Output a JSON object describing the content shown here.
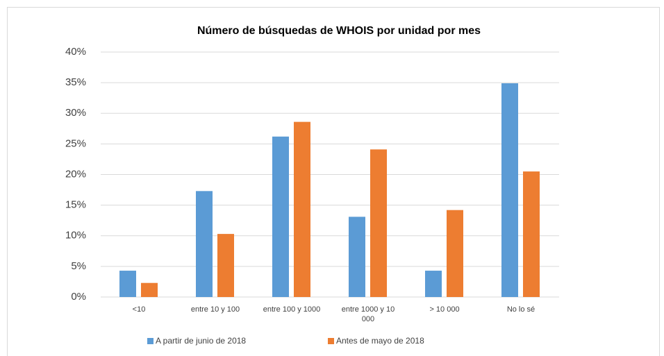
{
  "chart_data": {
    "type": "bar",
    "title": "Número de búsquedas de WHOIS por unidad por mes",
    "categories": [
      "<10",
      "entre 10 y 100",
      "entre 100 y 1000",
      "entre 1000 y 10 000",
      "> 10 000",
      "No lo sé"
    ],
    "series": [
      {
        "name": "A partir de junio de 2018",
        "color": "#5b9bd5",
        "values": [
          4.3,
          17.3,
          26.2,
          13.1,
          4.3,
          34.9
        ]
      },
      {
        "name": "Antes de mayo de 2018",
        "color": "#ed7d31",
        "values": [
          2.3,
          10.3,
          28.6,
          24.1,
          14.2,
          20.5
        ]
      }
    ],
    "ylim": [
      0,
      40
    ],
    "yticks": [
      {
        "value": 0,
        "label": "0%"
      },
      {
        "value": 5,
        "label": "5%"
      },
      {
        "value": 10,
        "label": "10%"
      },
      {
        "value": 15,
        "label": "15%"
      },
      {
        "value": 20,
        "label": "20%"
      },
      {
        "value": 25,
        "label": "25%"
      },
      {
        "value": 30,
        "label": "30%"
      },
      {
        "value": 35,
        "label": "35%"
      },
      {
        "value": 40,
        "label": "40%"
      }
    ],
    "grid": true,
    "legend": "bottom"
  }
}
